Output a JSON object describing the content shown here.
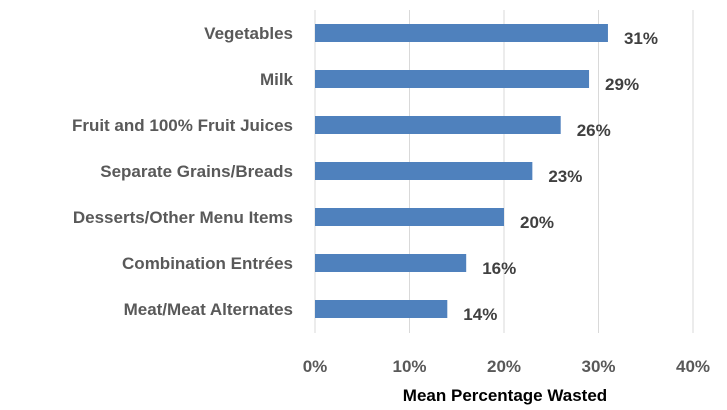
{
  "chart_data": {
    "type": "bar",
    "orientation": "horizontal",
    "categories": [
      "Vegetables",
      "Milk",
      "Fruit and 100% Fruit Juices",
      "Separate Grains/Breads",
      "Desserts/Other Menu Items",
      "Combination Entrées",
      "Meat/Meat Alternates"
    ],
    "values": [
      31,
      29,
      26,
      23,
      20,
      16,
      14
    ],
    "data_labels": [
      "31%",
      "29%",
      "26%",
      "23%",
      "20%",
      "16%",
      "14%"
    ],
    "x_ticks": [
      "0%",
      "10%",
      "20%",
      "30%",
      "40%"
    ],
    "xlim": [
      0,
      40
    ],
    "xlabel": "Mean Percentage Wasted",
    "ylabel": "",
    "title": "",
    "grid": true,
    "legend": "none",
    "bar_color": "#4f81bd"
  }
}
